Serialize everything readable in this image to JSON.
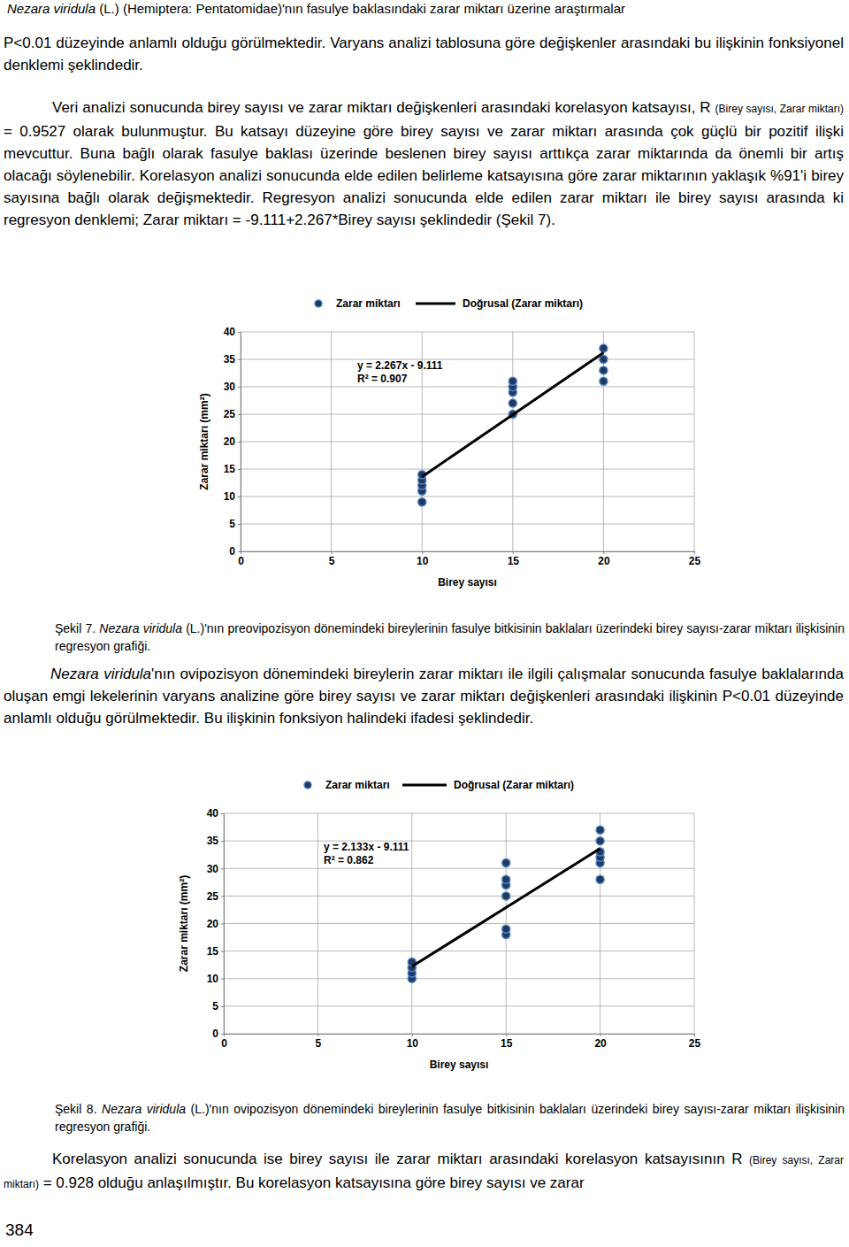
{
  "header": {
    "runs": [
      {
        "text": "Nezara viridula",
        "italic": true
      },
      {
        "text": " (L.) (Hemiptera: Pentatomidae)'nın fasulye baklasındaki zarar miktarı üzerine araştırmalar"
      }
    ]
  },
  "body": [
    {
      "runs": [
        {
          "text": "P<0.01 düzeyinde anlamlı olduğu görülmektedir. Varyans analizi tablosuna göre değişkenler arasındaki bu ilişkinin fonksiyonel denklemi   şeklindedir."
        }
      ]
    },
    {
      "runs": [
        {
          "text": "Veri analizi sonucunda birey sayısı ve zarar miktarı değişkenleri arasındaki korelasyon katsayısı, R "
        },
        {
          "text": "(Birey sayısı, Zarar miktarı)",
          "small": true
        },
        {
          "text": " = 0.9527 olarak bulunmuştur. Bu katsayı düzeyine göre birey sayısı ve zarar miktarı arasında çok güçlü bir pozitif ilişki mevcuttur. Buna bağlı olarak fasulye baklası üzerinde beslenen birey sayısı arttıkça zarar miktarında da önemli bir artış olacağı söylenebilir. Korelasyon analizi sonucunda elde edilen belirleme katsayısına göre zarar miktarının yaklaşık %91'i birey sayısına bağlı olarak değişmektedir. Regresyon analizi sonucunda elde edilen zarar miktarı ile birey sayısı arasında ki regresyon denklemi; Zarar miktarı = -9.111+2.267*Birey sayısı şeklindedir (Şekil 7)."
        }
      ]
    },
    {
      "runs": [
        {
          "text": "Nezara viridula",
          "italic": true
        },
        {
          "text": "'nın ovipozisyon dönemindeki bireylerin zarar miktarı ile ilgili çalışmalar sonucunda fasulye baklalarında oluşan emgi lekelerinin varyans analizine göre birey sayısı ve zarar miktarı değişkenleri arasındaki ilişkinin P<0.01 düzeyinde anlamlı olduğu görülmektedir. Bu ilişkinin fonksiyon halindeki ifadesi   şeklindedir."
        }
      ]
    },
    {
      "runs": [
        {
          "text": "Korelasyon analizi sonucunda ise birey sayısı ile zarar miktarı arasındaki korelasyon katsayısının R "
        },
        {
          "text": "(Birey sayısı, Zarar miktarı)",
          "small": true
        },
        {
          "text": " = 0.928 olduğu anlaşılmıştır. Bu korelasyon katsayısına göre birey sayısı ve zarar"
        }
      ]
    }
  ],
  "captions": [
    {
      "runs": [
        {
          "text": "Şekil 7. "
        },
        {
          "text": "Nezara viridula",
          "italic": true
        },
        {
          "text": " (L.)'nın preovipozisyon dönemindeki bireylerinin fasulye bitkisinin baklaları üzerindeki birey sayısı-zarar miktarı ilişkisinin regresyon grafiği."
        }
      ]
    },
    {
      "runs": [
        {
          "text": "Şekil 8. "
        },
        {
          "text": "Nezara viridula",
          "italic": true
        },
        {
          "text": " (L.)'nın ovipozisyon dönemindeki bireylerinin fasulye bitkisinin baklaları üzerindeki birey sayısı-zarar miktarı ilişkisinin regresyon grafiği."
        }
      ]
    }
  ],
  "page_number": "384",
  "chart_data": [
    {
      "type": "scatter",
      "x_label": "Birey sayısı",
      "y_label": "Zarar miktarı (mm²)",
      "annotations": [
        "y = 2.267x - 9.111",
        "R² = 0.907"
      ],
      "xlim": [
        0,
        25
      ],
      "xticks": [
        0,
        5,
        10,
        15,
        20,
        25
      ],
      "ylim": [
        0,
        40
      ],
      "yticks": [
        0,
        5,
        10,
        15,
        20,
        25,
        30,
        35,
        40
      ],
      "grid": true,
      "legend": "top",
      "series": [
        {
          "name": "Zarar miktarı",
          "type": "scatter",
          "marker": "circle",
          "color": "#1f3864",
          "x": [
            10,
            10,
            10,
            10,
            10,
            15,
            15,
            15,
            15,
            15,
            20,
            20,
            20,
            20
          ],
          "values": [
            9,
            11,
            12,
            13,
            14,
            25,
            27,
            29,
            30,
            31,
            31,
            33,
            35,
            37
          ]
        },
        {
          "name": "Doğrusal (Zarar miktarı)",
          "type": "line",
          "line_style": "solid",
          "color": "#000000",
          "x": [
            10,
            20
          ],
          "values": [
            13.6,
            36.2
          ]
        }
      ]
    },
    {
      "type": "scatter",
      "x_label": "Birey sayısı",
      "y_label": "Zarar miktarı (mm²)",
      "annotations": [
        "y = 2.133x - 9.111",
        "R² = 0.862"
      ],
      "xlim": [
        0,
        25
      ],
      "xticks": [
        0,
        5,
        10,
        15,
        20,
        25
      ],
      "ylim": [
        0,
        40
      ],
      "yticks": [
        0,
        5,
        10,
        15,
        20,
        25,
        30,
        35,
        40
      ],
      "grid": true,
      "legend": "top",
      "series": [
        {
          "name": "Zarar miktarı",
          "type": "scatter",
          "marker": "circle",
          "color": "#1f3864",
          "x": [
            10,
            10,
            10,
            10,
            15,
            15,
            15,
            15,
            15,
            15,
            20,
            20,
            20,
            20,
            20,
            20
          ],
          "values": [
            10,
            11,
            12,
            13,
            18,
            19,
            25,
            27,
            28,
            31,
            28,
            31,
            32,
            33,
            35,
            37
          ]
        },
        {
          "name": "Doğrusal (Zarar miktarı)",
          "type": "line",
          "line_style": "solid",
          "color": "#000000",
          "x": [
            10,
            20
          ],
          "values": [
            12.2,
            33.6
          ]
        }
      ]
    }
  ]
}
